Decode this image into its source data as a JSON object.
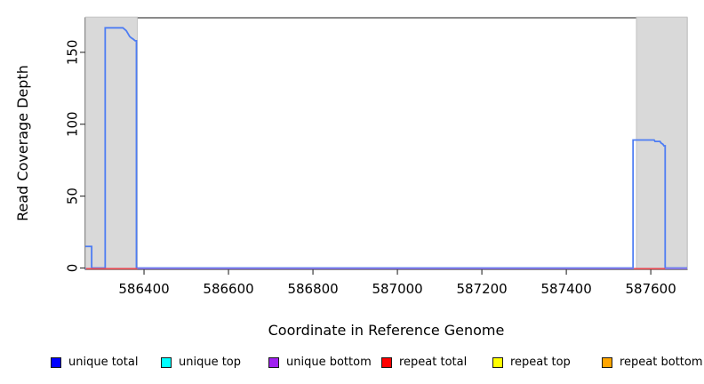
{
  "chart_data": {
    "type": "area",
    "title": "",
    "xlabel": "Coordinate in Reference Genome",
    "ylabel": "Read Coverage Depth",
    "xlim": [
      586261,
      587686
    ],
    "ylim": [
      0,
      174
    ],
    "xticks": [
      586400,
      586600,
      586800,
      587000,
      587200,
      587400,
      587600
    ],
    "yticks": [
      0,
      50,
      100,
      150
    ],
    "grid": false,
    "legend_position": "bottom",
    "shaded_regions": [
      {
        "name": "repeat-region-left",
        "x0": 586262,
        "x1": 586384,
        "color": "#d9d9d9",
        "border": "#c3c3c3"
      },
      {
        "name": "repeat-region-right",
        "x0": 587566,
        "x1": 587686,
        "color": "#d9d9d9",
        "border": "#c3c3c3"
      }
    ],
    "series": [
      {
        "name": "unique total",
        "color": "#4d7cf3",
        "points": [
          [
            586261,
            15
          ],
          [
            586276,
            15
          ],
          [
            586276,
            0
          ],
          [
            586308,
            0
          ],
          [
            586308,
            167
          ],
          [
            586350,
            167
          ],
          [
            586354,
            166
          ],
          [
            586358,
            165
          ],
          [
            586362,
            163
          ],
          [
            586366,
            161
          ],
          [
            586370,
            160
          ],
          [
            586375,
            159
          ],
          [
            586379,
            158
          ],
          [
            586382,
            158
          ],
          [
            586382,
            0
          ],
          [
            587558,
            0
          ],
          [
            587558,
            89
          ],
          [
            587608,
            89
          ],
          [
            587610,
            88
          ],
          [
            587622,
            88
          ],
          [
            587624,
            87
          ],
          [
            587629,
            86
          ],
          [
            587631,
            85
          ],
          [
            587634,
            85
          ],
          [
            587634,
            0
          ],
          [
            587686,
            0
          ]
        ]
      },
      {
        "name": "unique bottom",
        "color": "#8d75e6",
        "points": [
          [
            586261,
            0
          ],
          [
            587686,
            0
          ]
        ]
      },
      {
        "name": "repeat total",
        "color": "#ee4b4b",
        "segments": [
          [
            586263,
            586384
          ],
          [
            587560,
            587634
          ]
        ]
      }
    ],
    "legend": [
      {
        "label": "unique total",
        "color": "#0000ff"
      },
      {
        "label": "unique top",
        "color": "#00ffff"
      },
      {
        "label": "unique bottom",
        "color": "#a020f0"
      },
      {
        "label": "repeat total",
        "color": "#ff0000"
      },
      {
        "label": "repeat top",
        "color": "#ffff00"
      },
      {
        "label": "repeat bottom",
        "color": "#ffa500"
      }
    ]
  }
}
